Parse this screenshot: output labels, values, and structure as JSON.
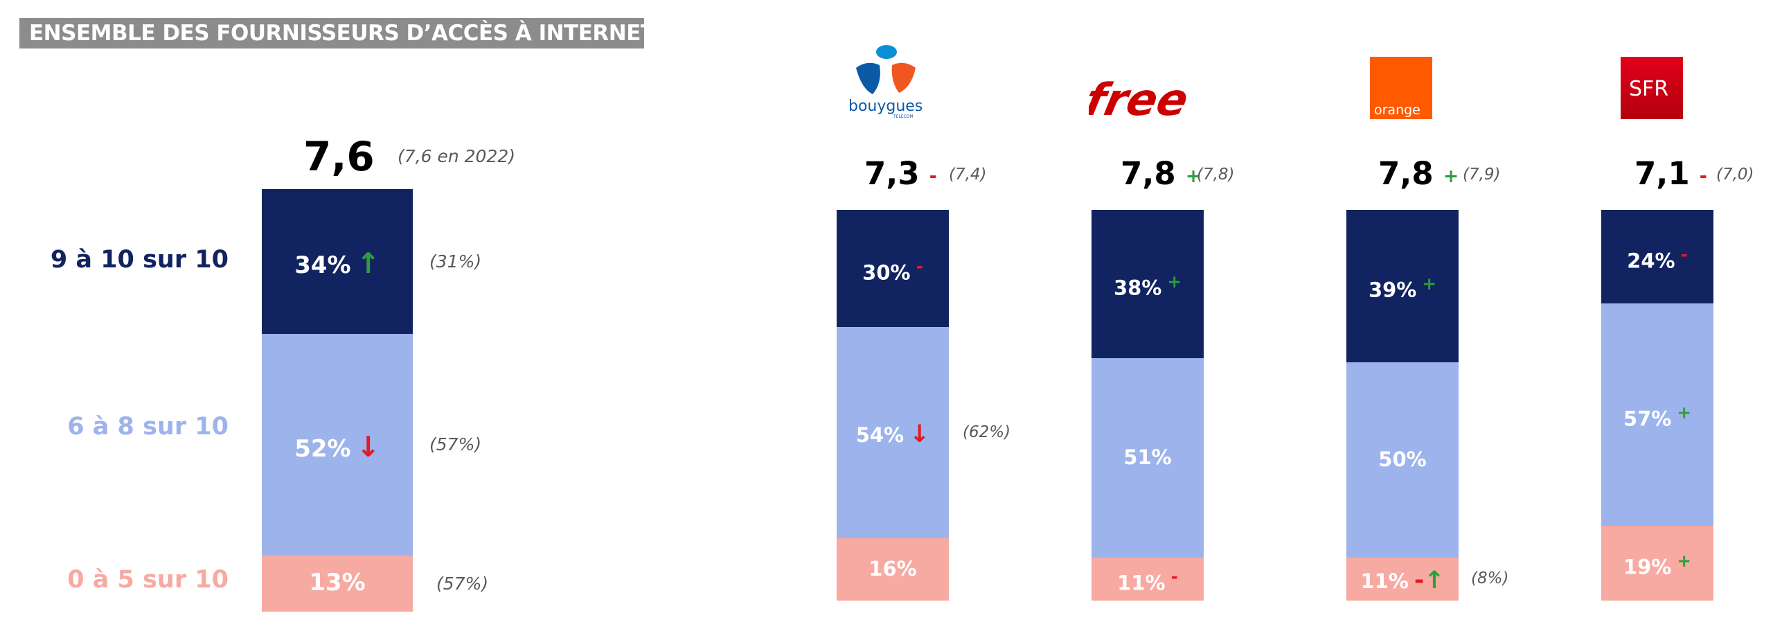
{
  "title": "ENSEMBLE DES FOURNISSEURS D’ACCÈS À INTERNET",
  "row_labels": [
    "9 à 10 sur 10",
    "6 à 8 sur 10",
    "0 à 5 sur 10"
  ],
  "colors": {
    "top": "#112361",
    "mid": "#9db3eb",
    "low": "#f7aaa2",
    "row_label_top": "#112361",
    "row_label_mid": "#9db3eb",
    "row_label_low": "#f7aaa2",
    "plus": "#2e9e3c",
    "minus": "#e21b23"
  },
  "logos": {
    "bouygues": "bouygues",
    "bouygues_sub": "TELECOM",
    "free": "free",
    "orange": "orange",
    "sfr": "SFR"
  },
  "chart_data": {
    "type": "bar",
    "stacked": true,
    "categories": [
      "Ensemble",
      "Bouygues",
      "Free",
      "Orange",
      "SFR"
    ],
    "series": [
      {
        "name": "9 à 10 sur 10",
        "values": [
          34,
          30,
          38,
          39,
          24
        ]
      },
      {
        "name": "6 à 8 sur 10",
        "values": [
          52,
          54,
          51,
          50,
          57
        ]
      },
      {
        "name": "0 à 5 sur 10",
        "values": [
          13,
          16,
          11,
          11,
          19
        ]
      }
    ],
    "bars": [
      {
        "id": "ensemble",
        "score": "7,6",
        "score_sign": "",
        "score_prev": "(7,6 en 2022)",
        "segments": [
          {
            "label": "34%",
            "value": 34,
            "mark": "↑",
            "mark_type": "arrow-up",
            "prev": "(31%)"
          },
          {
            "label": "52%",
            "value": 52,
            "mark": "↓",
            "mark_type": "arrow-down",
            "prev": "(57%)"
          },
          {
            "label": "13%",
            "value": 13,
            "mark": "",
            "mark_type": "",
            "prev": "(57%)"
          }
        ]
      },
      {
        "id": "bouygues",
        "score": "7,3",
        "score_sign": "-",
        "score_prev": "(7,4)",
        "segments": [
          {
            "label": "30%",
            "value": 30,
            "mark": "-",
            "mark_type": "minus",
            "prev": ""
          },
          {
            "label": "54%",
            "value": 54,
            "mark": "↓",
            "mark_type": "arrow-down",
            "prev": "(62%)"
          },
          {
            "label": "16%",
            "value": 16,
            "mark": "",
            "mark_type": "",
            "prev": ""
          }
        ]
      },
      {
        "id": "free",
        "score": "7,8",
        "score_sign": "+",
        "score_prev": "(7,8)",
        "segments": [
          {
            "label": "38%",
            "value": 38,
            "mark": "+",
            "mark_type": "plus",
            "prev": ""
          },
          {
            "label": "51%",
            "value": 51,
            "mark": "",
            "mark_type": "",
            "prev": ""
          },
          {
            "label": "11%",
            "value": 11,
            "mark": "-",
            "mark_type": "minus",
            "prev": ""
          }
        ]
      },
      {
        "id": "orange",
        "score": "7,8",
        "score_sign": "+",
        "score_prev": "(7,9)",
        "segments": [
          {
            "label": "39%",
            "value": 39,
            "mark": "+",
            "mark_type": "plus",
            "prev": ""
          },
          {
            "label": "50%",
            "value": 50,
            "mark": "",
            "mark_type": "",
            "prev": ""
          },
          {
            "label": "11%",
            "value": 11,
            "mark": "-↑",
            "mark_type": "minus-arrow-up",
            "prev": "(8%)"
          }
        ]
      },
      {
        "id": "sfr",
        "score": "7,1",
        "score_sign": "-",
        "score_prev": "(7,0)",
        "segments": [
          {
            "label": "24%",
            "value": 24,
            "mark": "-",
            "mark_type": "minus",
            "prev": ""
          },
          {
            "label": "57%",
            "value": 57,
            "mark": "+",
            "mark_type": "plus",
            "prev": ""
          },
          {
            "label": "19%",
            "value": 19,
            "mark": "+",
            "mark_type": "plus",
            "prev": ""
          }
        ]
      }
    ]
  }
}
